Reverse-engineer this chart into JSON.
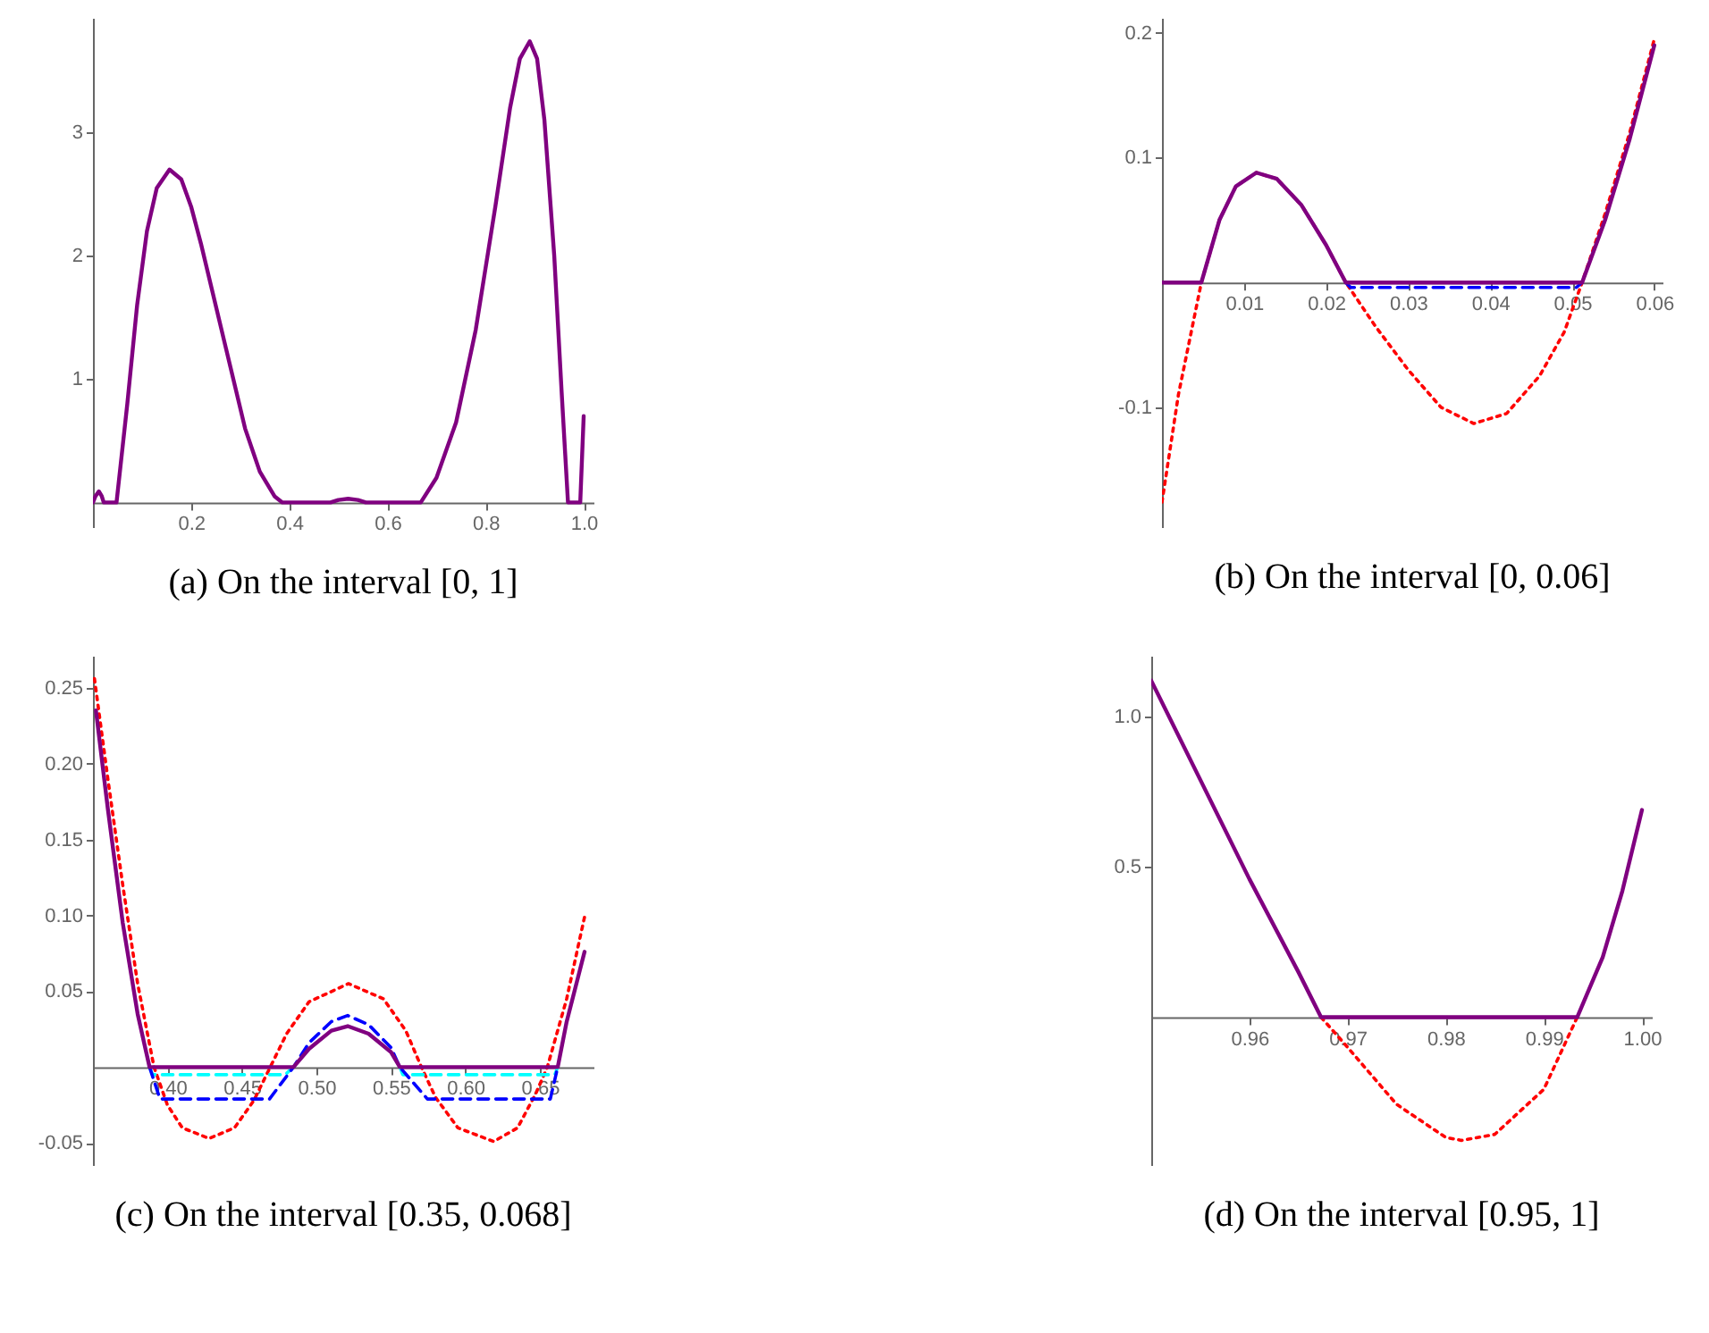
{
  "chart_data": [
    {
      "type": "line",
      "title": "(a) On the interval [0, 1]",
      "xlim": [
        0,
        1.02
      ],
      "ylim": [
        -0.2,
        3.93
      ],
      "xticks": [
        0.2,
        0.4,
        0.6,
        0.8,
        {
          "value": 1,
          "label": "1.0"
        }
      ],
      "yticks": [
        1,
        2,
        3
      ],
      "marker": "none",
      "series": [
        {
          "color": "#800080",
          "line_style": "solid",
          "x": [
            0,
            0.005,
            0.012,
            0.018,
            0.022,
            0.048,
            0.07,
            0.09,
            0.11,
            0.13,
            0.156,
            0.18,
            0.2,
            0.22,
            0.25,
            0.28,
            0.31,
            0.34,
            0.37,
            0.386,
            0.484,
            0.5,
            0.52,
            0.54,
            0.556,
            0.668,
            0.7,
            0.74,
            0.78,
            0.82,
            0.85,
            0.87,
            0.89,
            0.905,
            0.92,
            0.94,
            0.955,
            0.968,
            0.993,
            1.0
          ],
          "values": [
            0,
            0.05,
            0.09,
            0.05,
            0,
            0,
            0.8,
            1.6,
            2.2,
            2.55,
            2.7,
            2.62,
            2.4,
            2.1,
            1.6,
            1.1,
            0.6,
            0.25,
            0.05,
            0,
            0,
            0.02,
            0.03,
            0.02,
            0,
            0,
            0.2,
            0.65,
            1.4,
            2.4,
            3.2,
            3.6,
            3.74,
            3.6,
            3.1,
            2.0,
            0.9,
            0,
            0,
            0.7
          ]
        }
      ]
    },
    {
      "type": "line",
      "title": "(b) On the interval [0, 0.06]",
      "xlim": [
        0,
        0.061
      ],
      "ylim": [
        -0.196,
        0.212
      ],
      "xticks": [
        0.01,
        0.02,
        0.03,
        0.04,
        0.05,
        0.06
      ],
      "yticks": [
        -0.1,
        0.1,
        0.2
      ],
      "marker": "none",
      "series": [
        {
          "color": "#ff0000",
          "line_style": "dotted",
          "x": [
            0,
            0.002,
            0.0048,
            0.007,
            0.009,
            0.0115,
            0.014,
            0.017,
            0.02,
            0.0224,
            0.026,
            0.03,
            0.034,
            0.038,
            0.042,
            0.046,
            0.049,
            0.0512,
            0.054,
            0.057,
            0.06
          ],
          "values": [
            -0.176,
            -0.09,
            0,
            0.05,
            0.077,
            0.088,
            0.083,
            0.062,
            0.03,
            0,
            -0.035,
            -0.07,
            -0.1,
            -0.113,
            -0.105,
            -0.075,
            -0.04,
            0,
            0.055,
            0.12,
            0.195
          ]
        },
        {
          "color": "#0000ff",
          "line_style": "dashed",
          "x": [
            0.0224,
            0.023,
            0.0505,
            0.0512
          ],
          "values": [
            0,
            -0.004,
            -0.004,
            0
          ]
        },
        {
          "color": "#800080",
          "line_style": "solid",
          "x": [
            0,
            0.0048,
            0.007,
            0.009,
            0.0115,
            0.014,
            0.017,
            0.02,
            0.0224,
            0.0512,
            0.054,
            0.057,
            0.06
          ],
          "values": [
            0,
            0,
            0.05,
            0.077,
            0.088,
            0.083,
            0.062,
            0.03,
            0,
            0,
            0.05,
            0.115,
            0.19
          ]
        }
      ]
    },
    {
      "type": "line",
      "title": "(c) On the interval [0.35, 0.068]",
      "xlim": [
        0.35,
        0.686
      ],
      "ylim": [
        -0.0645,
        0.271
      ],
      "xticks": [
        {
          "value": 0.4,
          "label": "0.40"
        },
        0.45,
        {
          "value": 0.5,
          "label": "0.50"
        },
        0.55,
        {
          "value": 0.6,
          "label": "0.60"
        },
        0.65
      ],
      "yticks": [
        -0.05,
        0.05,
        {
          "value": 0.1,
          "label": "0.10"
        },
        0.15,
        {
          "value": 0.2,
          "label": "0.20"
        },
        0.25
      ],
      "marker": "none",
      "series": [
        {
          "color": "#ff0000",
          "line_style": "dotted",
          "x": [
            0.351,
            0.36,
            0.37,
            0.38,
            0.391,
            0.4,
            0.41,
            0.428,
            0.445,
            0.458,
            0.469,
            0.48,
            0.495,
            0.5215,
            0.545,
            0.56,
            0.5705,
            0.58,
            0.595,
            0.619,
            0.635,
            0.647,
            0.655,
            0.668,
            0.68
          ],
          "values": [
            0.256,
            0.19,
            0.12,
            0.055,
            0,
            -0.025,
            -0.04,
            -0.047,
            -0.04,
            -0.022,
            0,
            0.022,
            0.043,
            0.055,
            0.045,
            0.024,
            0,
            -0.02,
            -0.04,
            -0.049,
            -0.04,
            -0.018,
            0,
            0.045,
            0.099
          ]
        },
        {
          "color": "#00ffff",
          "line_style": "dashed",
          "x": [
            0.388,
            0.39,
            0.479,
            0.4846,
            0.52,
            0.556,
            0.558,
            0.66,
            0.662
          ],
          "values": [
            0,
            -0.005,
            -0.005,
            0,
            null,
            0,
            -0.005,
            -0.005,
            0
          ]
        },
        {
          "color": "#0000ff",
          "line_style": "dashed",
          "x": [
            0.388,
            0.395,
            0.4685,
            0.4846,
            0.495,
            0.51,
            0.521,
            0.535,
            0.55,
            0.556,
            0.5745,
            0.657,
            0.662
          ],
          "values": [
            0,
            -0.021,
            -0.021,
            0,
            0.016,
            0.03,
            0.034,
            0.028,
            0.013,
            0,
            -0.021,
            -0.021,
            0
          ]
        },
        {
          "color": "#800080",
          "line_style": "solid",
          "x": [
            0.352,
            0.36,
            0.37,
            0.38,
            0.388,
            0.4846,
            0.495,
            0.51,
            0.521,
            0.535,
            0.55,
            0.556,
            0.662,
            0.668,
            0.68
          ],
          "values": [
            0.235,
            0.17,
            0.095,
            0.035,
            0,
            0,
            0.012,
            0.024,
            0.027,
            0.022,
            0.01,
            0,
            0,
            0.03,
            0.076
          ]
        }
      ]
    },
    {
      "type": "line",
      "title": "(d) On the interval [0.95, 1]",
      "xlim": [
        0.95,
        1.001
      ],
      "ylim": [
        -0.492,
        1.203
      ],
      "xticks": [
        0.96,
        0.97,
        0.98,
        0.99,
        {
          "value": 1,
          "label": "1.00"
        }
      ],
      "yticks": [
        {
          "value": 0.5,
          "label": "0.5"
        },
        {
          "value": 1,
          "label": "1.0"
        }
      ],
      "marker": "none",
      "series": [
        {
          "color": "#ff0000",
          "line_style": "dotted",
          "x": [
            0.9673,
            0.97,
            0.975,
            0.98,
            0.9816,
            0.985,
            0.99,
            0.9934
          ],
          "values": [
            0,
            -0.1,
            -0.29,
            -0.4,
            -0.41,
            -0.39,
            -0.24,
            0
          ]
        },
        {
          "color": "#800080",
          "line_style": "solid",
          "x": [
            0.95,
            0.955,
            0.96,
            0.965,
            0.9673,
            0.9934,
            0.996,
            0.998,
            1.0
          ],
          "values": [
            1.12,
            0.79,
            0.46,
            0.15,
            0,
            0,
            0.2,
            0.42,
            0.69
          ]
        }
      ]
    }
  ]
}
